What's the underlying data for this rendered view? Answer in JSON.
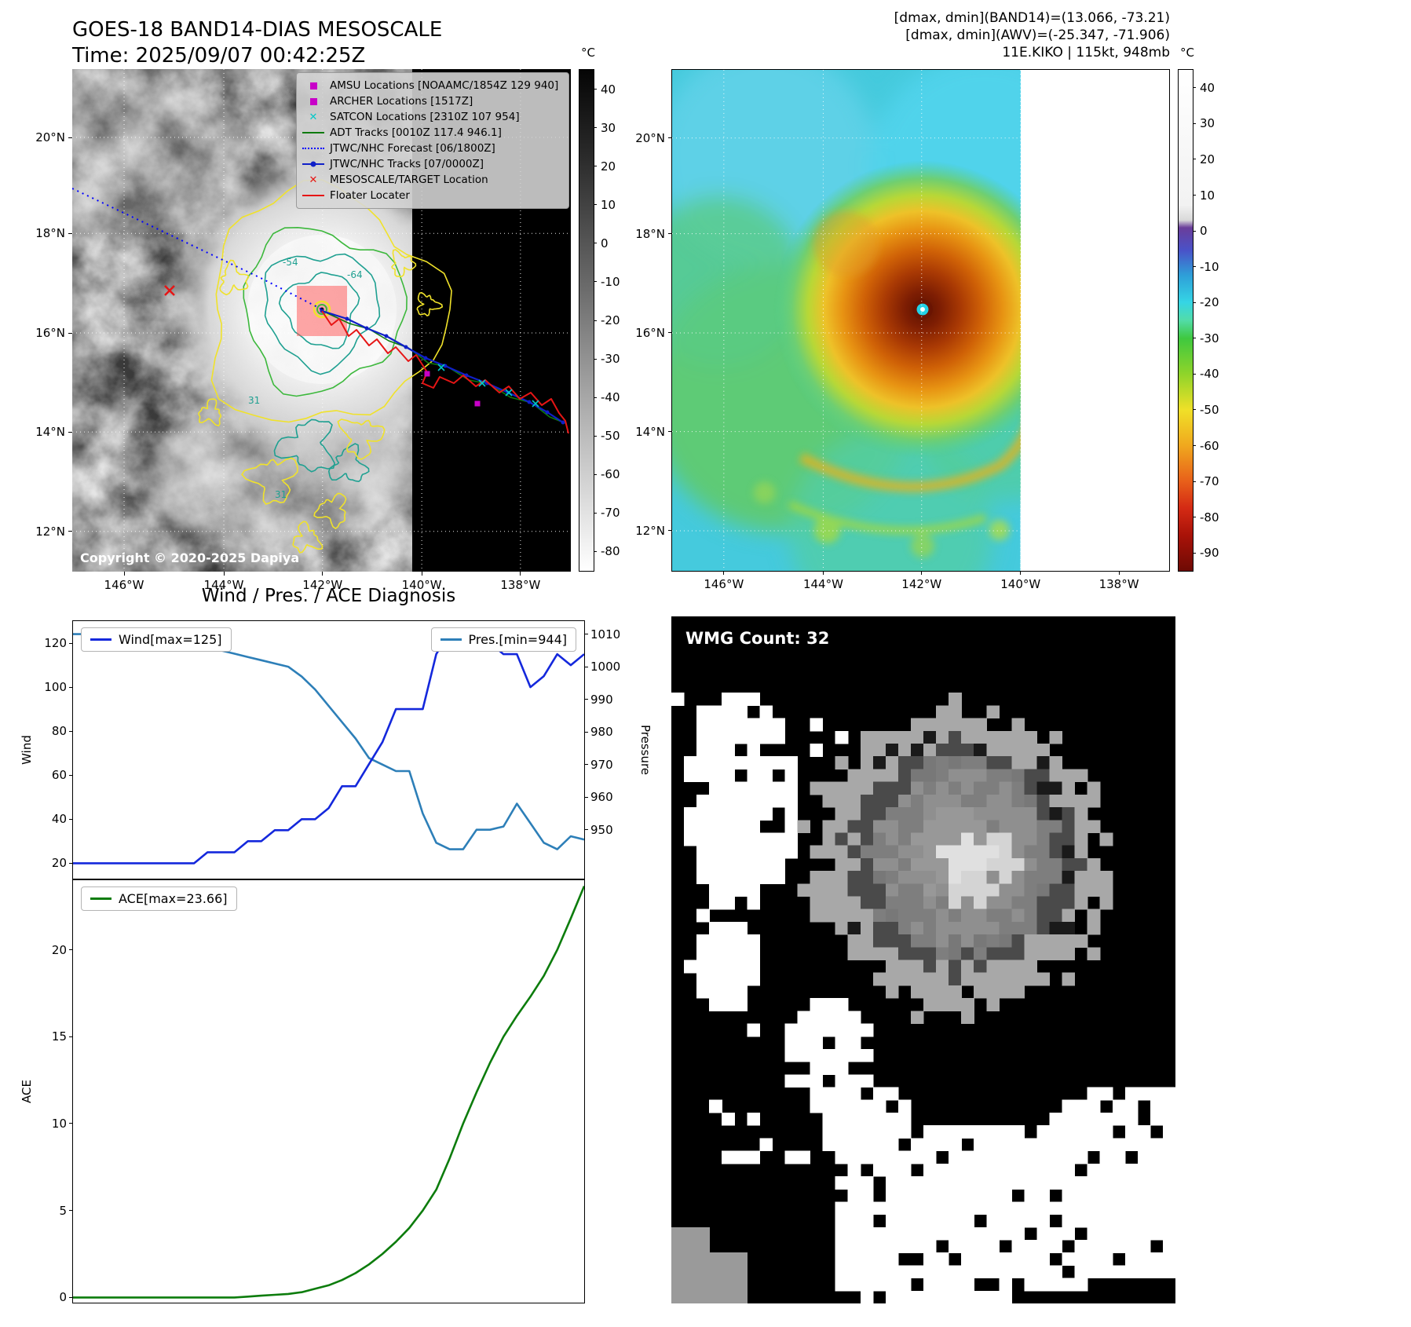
{
  "header": {
    "title": "GOES-18 BAND14-DIAS MESOSCALE",
    "time": "Time: 2025/09/07 00:42:25Z",
    "info_lines": [
      "[dmax, dmin](BAND14)=(13.066, -73.21)",
      "[dmax, dmin](AWV)=(-25.347, -71.906)",
      "11E.KIKO | 115kt, 948mb"
    ]
  },
  "geo": {
    "lat_ticks": [
      "20°N",
      "18°N",
      "16°N",
      "14°N",
      "12°N"
    ],
    "lon_ticks": [
      "146°W",
      "144°W",
      "142°W",
      "140°W",
      "138°W"
    ]
  },
  "map_band14": {
    "legend": [
      {
        "label": "AMSU Locations [NOAAMC/1854Z 129 940]",
        "marker": "square",
        "color": "#c800c8"
      },
      {
        "label": "ARCHER Locations [1517Z]",
        "marker": "square",
        "color": "#c800c8"
      },
      {
        "label": "SATCON Locations [2310Z 107 954]",
        "marker": "x",
        "color": "#00c8c8"
      },
      {
        "label": "ADT Tracks [0010Z 117.4 946.1]",
        "marker": "line",
        "color": "#0e7a0e"
      },
      {
        "label": "JTWC/NHC Forecast [06/1800Z]",
        "marker": "dotted",
        "color": "#0000ff"
      },
      {
        "label": "JTWC/NHC Tracks [07/0000Z]",
        "marker": "line-dot",
        "color": "#1020c8"
      },
      {
        "label": "MESOSCALE/TARGET Location",
        "marker": "x",
        "color": "#e61515"
      },
      {
        "label": "Floater Locater",
        "marker": "line",
        "color": "#e61515"
      }
    ],
    "contour_labels": [
      "-54",
      "-64",
      "31",
      "31"
    ],
    "copyright": "Copyright © 2020-2025 Dapiya",
    "colorbar": {
      "unit": "°C",
      "vmin": -85,
      "vmax": 45,
      "ticks": [
        40,
        30,
        20,
        10,
        0,
        -10,
        -20,
        -30,
        -40,
        -50,
        -60,
        -70,
        -80
      ]
    }
  },
  "map_enhanced": {
    "colorbar": {
      "unit": "°C",
      "vmin": -95,
      "vmax": 45,
      "ticks": [
        40,
        30,
        20,
        10,
        0,
        -10,
        -20,
        -30,
        -40,
        -50,
        -60,
        -70,
        -80,
        -90
      ]
    }
  },
  "charts": {
    "title": "Wind / Pres. / ACE Diagnosis"
  },
  "chart_data": [
    {
      "type": "line",
      "title": "Wind / Pres. / ACE Diagnosis",
      "xlabel": "",
      "ylabel_left": "Wind",
      "ylabel_right": "Pressure",
      "ylim_left": [
        13,
        130
      ],
      "ylim_right": [
        935,
        1014
      ],
      "yticks_left": [
        20,
        40,
        60,
        80,
        100,
        120
      ],
      "yticks_right": [
        950,
        960,
        970,
        980,
        990,
        1000,
        1010
      ],
      "grid": false,
      "series": [
        {
          "name": "Wind[max=125]",
          "axis": "left",
          "color": "#1428dc",
          "values": [
            20,
            20,
            20,
            20,
            20,
            20,
            20,
            20,
            20,
            20,
            25,
            25,
            25,
            30,
            30,
            35,
            35,
            40,
            40,
            45,
            55,
            55,
            65,
            75,
            90,
            90,
            90,
            115,
            125,
            125,
            125,
            120,
            115,
            115,
            100,
            105,
            115,
            110,
            115
          ]
        },
        {
          "name": "Pres.[min=944]",
          "axis": "right",
          "color": "#2d7fb8",
          "values": [
            1010,
            1010,
            1010,
            1010,
            1010,
            1009,
            1009,
            1008,
            1008,
            1007,
            1006,
            1005,
            1004,
            1003,
            1002,
            1001,
            1000,
            997,
            993,
            988,
            983,
            978,
            972,
            970,
            968,
            968,
            955,
            946,
            944,
            944,
            950,
            950,
            951,
            958,
            952,
            946,
            944,
            948,
            947
          ]
        }
      ]
    },
    {
      "type": "line",
      "title": "",
      "xlabel": "",
      "ylabel": "ACE",
      "ylim": [
        -0.3,
        24.0
      ],
      "yticks": [
        0,
        5,
        10,
        15,
        20
      ],
      "grid": false,
      "series": [
        {
          "name": "ACE[max=23.66]",
          "color": "#0c7c0c",
          "values": [
            0,
            0,
            0,
            0,
            0,
            0,
            0,
            0,
            0,
            0,
            0,
            0,
            0,
            0.05,
            0.1,
            0.15,
            0.2,
            0.3,
            0.5,
            0.7,
            1,
            1.4,
            1.9,
            2.5,
            3.2,
            4,
            5,
            6.2,
            8,
            10,
            11.8,
            13.5,
            15,
            16.2,
            17.3,
            18.5,
            20,
            21.8,
            23.66
          ]
        }
      ]
    }
  ],
  "wmg": {
    "count_label": "WMG Count: 32"
  }
}
